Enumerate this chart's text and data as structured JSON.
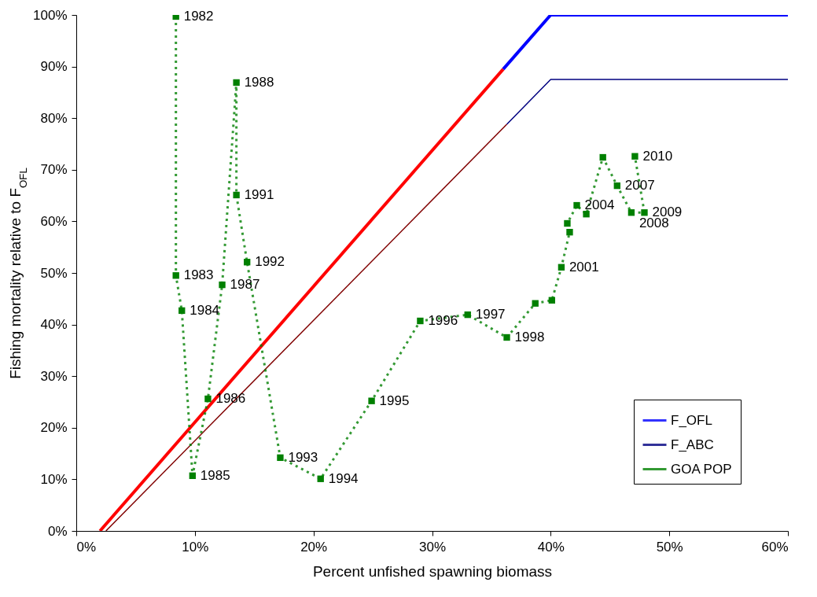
{
  "chart_data": {
    "type": "line",
    "xlabel": "Percent unfished spawning biomass",
    "ylabel": "Fishing mortality relative to F$_{OFL}$",
    "xlim": [
      0,
      60
    ],
    "ylim": [
      0,
      100
    ],
    "xticks": [
      {
        "value": 0,
        "label": "0%"
      },
      {
        "value": 10,
        "label": "10%"
      },
      {
        "value": 20,
        "label": "20%"
      },
      {
        "value": 30,
        "label": "30%"
      },
      {
        "value": 40,
        "label": "40%"
      },
      {
        "value": 50,
        "label": "50%"
      },
      {
        "value": 60,
        "label": "60%"
      }
    ],
    "yticks": [
      {
        "value": 0,
        "label": "0%"
      },
      {
        "value": 10,
        "label": "10%"
      },
      {
        "value": 20,
        "label": "20%"
      },
      {
        "value": 30,
        "label": "30%"
      },
      {
        "value": 40,
        "label": "40%"
      },
      {
        "value": 50,
        "label": "50%"
      },
      {
        "value": 60,
        "label": "60%"
      },
      {
        "value": 70,
        "label": "70%"
      },
      {
        "value": 80,
        "label": "80%"
      },
      {
        "value": 90,
        "label": "90%"
      },
      {
        "value": 100,
        "label": "100%"
      }
    ],
    "grid": false,
    "legend": "bottom right",
    "series": [
      {
        "color": "#ff0000",
        "x": [
          2,
          36
        ],
        "values": [
          0,
          89.5
        ],
        "line_style": "solid"
      },
      {
        "name": "F_OFL",
        "color": "#0000ff",
        "x": [
          36,
          40,
          60
        ],
        "values": [
          89.5,
          100,
          100
        ],
        "line_style": "solid"
      },
      {
        "color": "#800000",
        "x": [
          2.5,
          36.3
        ],
        "values": [
          0,
          78.8
        ],
        "line_style": "solid"
      },
      {
        "name": "F_ABC",
        "color": "#000080",
        "x": [
          36.3,
          40,
          60
        ],
        "values": [
          78.8,
          87.5,
          87.5
        ],
        "line_style": "solid"
      },
      {
        "name": "GOA POP",
        "color": "#008000",
        "line_style": "dotted",
        "marker": "square",
        "x": [
          8.4,
          8.4,
          8.9,
          9.8,
          11.1,
          12.3,
          13.5,
          13.5,
          14.4,
          17.2,
          20.6,
          24.9,
          29.0,
          33.0,
          36.3,
          38.7,
          40.1,
          40.9,
          41.6,
          41.4,
          42.2,
          43.0,
          44.4,
          45.6,
          46.8,
          47.9,
          47.1
        ],
        "values": [
          99.7,
          49.5,
          42.7,
          10.7,
          25.6,
          47.7,
          86.9,
          65.1,
          52.1,
          14.2,
          10.1,
          25.2,
          40.7,
          41.9,
          37.5,
          44.1,
          44.7,
          51.1,
          57.9,
          59.6,
          63.1,
          61.4,
          72.4,
          66.9,
          61.7,
          61.7,
          72.6
        ]
      }
    ],
    "annotations": [
      {
        "text": "1982",
        "x": 8.4,
        "y": 99.7
      },
      {
        "text": "1983",
        "x": 8.4,
        "y": 49.5
      },
      {
        "text": "1984",
        "x": 8.9,
        "y": 42.7
      },
      {
        "text": "1985",
        "x": 9.8,
        "y": 10.7
      },
      {
        "text": "1986",
        "x": 11.1,
        "y": 25.6
      },
      {
        "text": "1987",
        "x": 12.3,
        "y": 47.7
      },
      {
        "text": "1988",
        "x": 13.5,
        "y": 86.9
      },
      {
        "text": "1991",
        "x": 13.5,
        "y": 65.1
      },
      {
        "text": "1992",
        "x": 14.4,
        "y": 52.1
      },
      {
        "text": "1993",
        "x": 17.2,
        "y": 14.2
      },
      {
        "text": "1994",
        "x": 20.6,
        "y": 10.1
      },
      {
        "text": "1995",
        "x": 24.9,
        "y": 25.2
      },
      {
        "text": "1996",
        "x": 29.0,
        "y": 40.7
      },
      {
        "text": "1997",
        "x": 33.0,
        "y": 41.9
      },
      {
        "text": "1998",
        "x": 36.3,
        "y": 37.5
      },
      {
        "text": "2001",
        "x": 40.9,
        "y": 51.1
      },
      {
        "text": "2004",
        "x": 42.2,
        "y": 63.1
      },
      {
        "text": "2007",
        "x": 45.6,
        "y": 66.9
      },
      {
        "text": "2008",
        "x": 46.8,
        "y": 61.7
      },
      {
        "text": "2009",
        "x": 47.9,
        "y": 61.7
      },
      {
        "text": "2010",
        "x": 47.1,
        "y": 72.6
      }
    ]
  }
}
